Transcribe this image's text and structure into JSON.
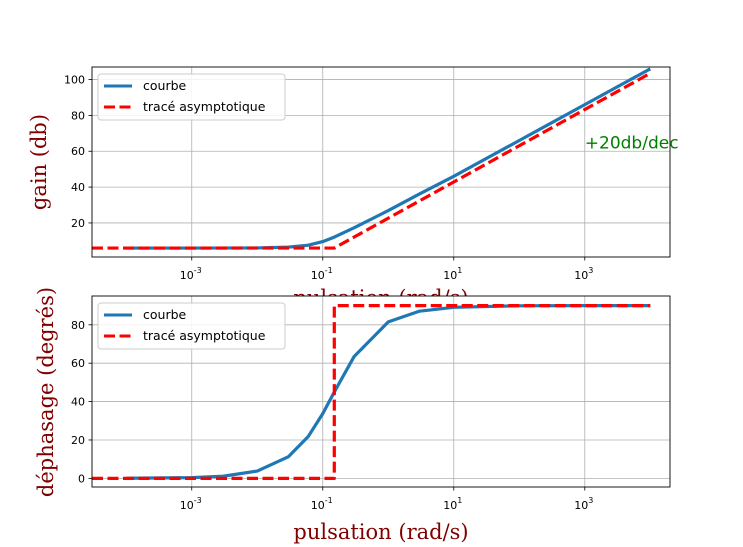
{
  "chart_data": [
    {
      "type": "line",
      "title": "",
      "xlabel": "pulsation (rad/s)",
      "ylabel": "gain (db)",
      "xscale": "log",
      "xlim": [
        3e-05,
        20000
      ],
      "ylim": [
        1,
        107
      ],
      "xtick_values": [
        0.001,
        0.1,
        10,
        1000
      ],
      "xtick_labels": [
        "10-3",
        "10-1",
        "101",
        "103"
      ],
      "ytick_values": [
        20,
        40,
        60,
        80,
        100
      ],
      "ytick_labels": [
        "20",
        "40",
        "60",
        "80",
        "100"
      ],
      "grid": true,
      "legend_position": "upper-left",
      "annotation": {
        "text": "+20db/dec",
        "x": 1000,
        "y": 65
      },
      "series": [
        {
          "name": "courbe",
          "style": "solid",
          "color": "#1f77b4",
          "x": [
            0.0001,
            0.001,
            0.01,
            0.03,
            0.06,
            0.1,
            0.15,
            0.3,
            1,
            3,
            10,
            100,
            1000,
            10000
          ],
          "y": [
            6.0,
            6.0,
            6.06,
            6.5,
            7.6,
            9.6,
            12.1,
            17.3,
            26.9,
            36.2,
            46.0,
            66.0,
            86.0,
            106.0
          ]
        },
        {
          "name": "tracé asymptotique",
          "style": "dashed",
          "color": "#ff0000",
          "x": [
            3e-05,
            0.1,
            0.15,
            10000
          ],
          "y": [
            6.0,
            6.0,
            6.0,
            103.5
          ]
        }
      ]
    },
    {
      "type": "line",
      "title": "",
      "xlabel": "pulsation (rad/s)",
      "ylabel": "déphasage (degrés)",
      "xscale": "log",
      "xlim": [
        3e-05,
        20000
      ],
      "ylim": [
        -4.5,
        95
      ],
      "xtick_values": [
        0.001,
        0.1,
        10,
        1000
      ],
      "xtick_labels": [
        "10-3",
        "10-1",
        "101",
        "103"
      ],
      "ytick_values": [
        0,
        20,
        40,
        60,
        80
      ],
      "ytick_labels": [
        "0",
        "20",
        "40",
        "60",
        "80"
      ],
      "grid": true,
      "legend_position": "upper-left",
      "series": [
        {
          "name": "courbe",
          "style": "solid",
          "color": "#1f77b4",
          "x": [
            0.0001,
            0.001,
            0.003,
            0.01,
            0.03,
            0.06,
            0.1,
            0.15,
            0.3,
            1,
            3,
            10,
            100,
            1000,
            10000
          ],
          "y": [
            0.04,
            0.4,
            1.1,
            3.8,
            11.3,
            21.8,
            33.7,
            45.0,
            63.4,
            81.5,
            87.1,
            89.1,
            89.9,
            90.0,
            90.0
          ]
        },
        {
          "name": "tracé asymptotique",
          "style": "dashed",
          "color": "#ff0000",
          "x": [
            3e-05,
            0.15,
            0.15,
            10000
          ],
          "y": [
            0,
            0,
            90,
            90
          ]
        }
      ]
    }
  ]
}
